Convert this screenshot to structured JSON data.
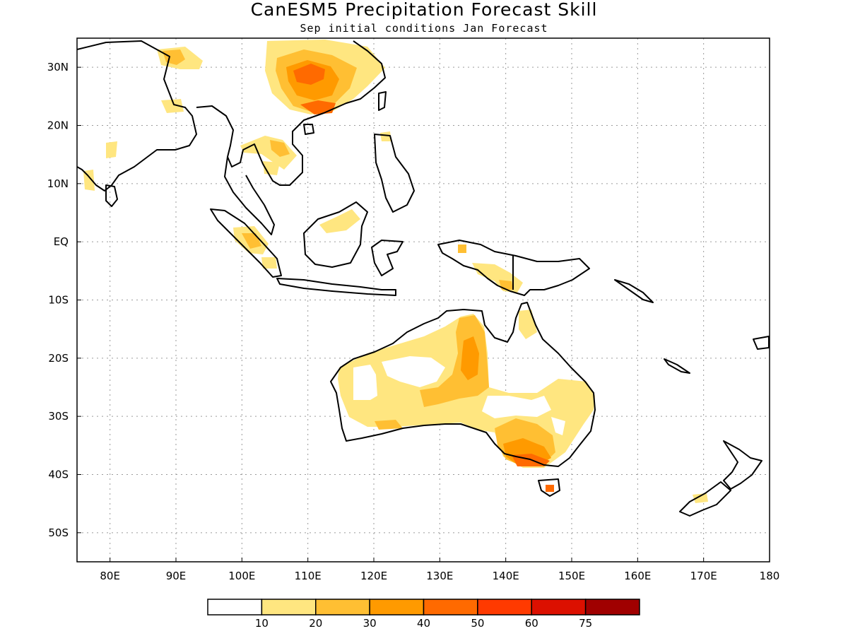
{
  "title": "CanESM5 Precipitation Forecast Skill",
  "subtitle": "Sep initial conditions  Jan Forecast",
  "colors": {
    "levels": [
      "#ffffff",
      "#ffe680",
      "#ffbf33",
      "#ff9a00",
      "#ff6a00",
      "#ff3a00",
      "#dc1000",
      "#a00000"
    ],
    "coast": "#000000",
    "grid": "#9a9a9a"
  },
  "chart_data": {
    "type": "map",
    "lon_range": [
      75,
      180
    ],
    "lat_range": [
      -55,
      35
    ],
    "x_ticks": [
      {
        "value": 80,
        "label": "80E"
      },
      {
        "value": 90,
        "label": "90E"
      },
      {
        "value": 100,
        "label": "100E"
      },
      {
        "value": 110,
        "label": "110E"
      },
      {
        "value": 120,
        "label": "120E"
      },
      {
        "value": 130,
        "label": "130E"
      },
      {
        "value": 140,
        "label": "140E"
      },
      {
        "value": 150,
        "label": "150E"
      },
      {
        "value": 160,
        "label": "160E"
      },
      {
        "value": 170,
        "label": "170E"
      },
      {
        "value": 180,
        "label": "180"
      }
    ],
    "y_ticks": [
      {
        "value": 30,
        "label": "30N"
      },
      {
        "value": 20,
        "label": "20N"
      },
      {
        "value": 10,
        "label": "10N"
      },
      {
        "value": 0,
        "label": "EQ"
      },
      {
        "value": -10,
        "label": "10S"
      },
      {
        "value": -20,
        "label": "20S"
      },
      {
        "value": -30,
        "label": "30S"
      },
      {
        "value": -40,
        "label": "40S"
      },
      {
        "value": -50,
        "label": "50S"
      }
    ],
    "grid": true,
    "colorbar": {
      "labels": [
        "10",
        "20",
        "30",
        "40",
        "50",
        "60",
        "75"
      ]
    }
  }
}
